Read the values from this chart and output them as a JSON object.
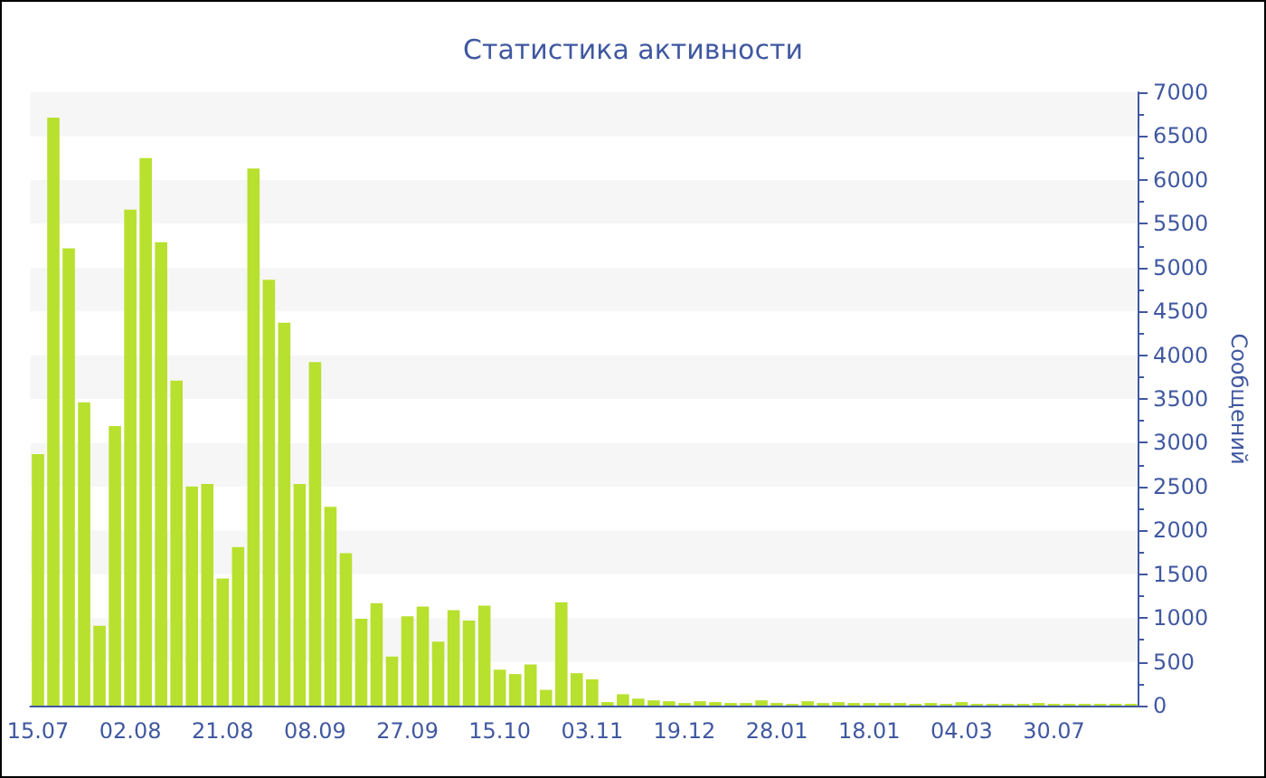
{
  "chart_data": {
    "type": "bar",
    "title": "Статистика активности",
    "ylabel": "Сообщений",
    "color": "#b8e02e",
    "categories": [
      "15.07",
      null,
      null,
      null,
      null,
      null,
      "02.08",
      null,
      null,
      null,
      null,
      null,
      "21.08",
      null,
      null,
      null,
      null,
      null,
      "08.09",
      null,
      null,
      null,
      null,
      null,
      "27.09",
      null,
      null,
      null,
      null,
      null,
      "15.10",
      null,
      null,
      null,
      null,
      null,
      "03.11",
      null,
      null,
      null,
      null,
      null,
      "19.12",
      null,
      null,
      null,
      null,
      null,
      "28.01",
      null,
      null,
      null,
      null,
      null,
      "18.01",
      null,
      null,
      null,
      null,
      null,
      "04.03",
      null,
      null,
      null,
      null,
      null,
      "30.07",
      null,
      null,
      null,
      null,
      null
    ],
    "values": [
      2870,
      6710,
      5220,
      3460,
      910,
      3190,
      5660,
      6250,
      5290,
      3710,
      2500,
      2530,
      1450,
      1810,
      6130,
      4860,
      4370,
      2530,
      3920,
      2270,
      1740,
      990,
      1170,
      560,
      1020,
      1130,
      730,
      1090,
      970,
      1140,
      410,
      360,
      470,
      180,
      1180,
      370,
      300,
      40,
      130,
      80,
      60,
      50,
      30,
      50,
      40,
      30,
      30,
      60,
      30,
      20,
      50,
      30,
      40,
      30,
      30,
      30,
      30,
      20,
      30,
      20,
      40,
      20,
      20,
      20,
      20,
      30,
      20,
      20,
      20,
      20,
      20,
      20
    ],
    "ylim": [
      0,
      7000
    ],
    "yticks": [
      0,
      500,
      1000,
      1500,
      2000,
      2500,
      3000,
      3500,
      4000,
      4500,
      5000,
      5500,
      6000,
      6500,
      7000
    ],
    "grid": false
  }
}
